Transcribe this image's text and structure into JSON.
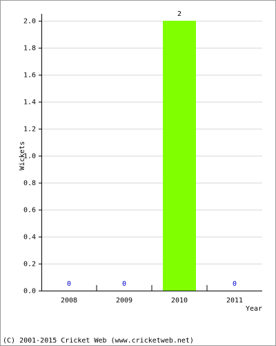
{
  "chart_data": {
    "type": "bar",
    "x_label": "Year",
    "y_label": "Wickets",
    "footer": "(C) 2001-2015 Cricket Web (www.cricketweb.net)",
    "categories": [
      "2008",
      "2009",
      "2010",
      "2011"
    ],
    "values": [
      0,
      0,
      2,
      0
    ],
    "color": "#80ff00",
    "ylim": [
      0,
      2
    ],
    "yticks": [
      {
        "value": 0,
        "label": "0.0"
      },
      0.2,
      0.4,
      0.6,
      0.8,
      {
        "value": 1,
        "label": "1.0"
      },
      1.2,
      1.4,
      1.6,
      1.8,
      {
        "value": 2,
        "label": "2.0"
      }
    ],
    "grid": true
  }
}
